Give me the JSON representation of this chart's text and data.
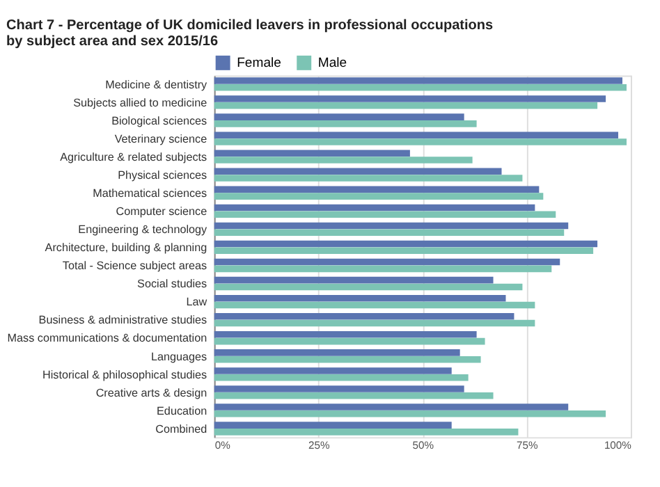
{
  "chart_data": {
    "type": "bar",
    "orientation": "horizontal",
    "title": "Chart 7 - Percentage of UK domiciled leavers in professional occupations by subject area and sex 2015/16",
    "categories": [
      "Medicine & dentistry",
      "Subjects allied to medicine",
      "Biological sciences",
      "Veterinary science",
      "Agriculture & related subjects",
      "Physical sciences",
      "Mathematical sciences",
      "Computer science",
      "Engineering & technology",
      "Architecture, building & planning",
      "Total - Science subject areas",
      "Social studies",
      "Law",
      "Business & administrative studies",
      "Mass communications & documentation",
      "Languages",
      "Historical & philosophical studies",
      "Creative arts & design",
      "Education",
      "Combined"
    ],
    "series": [
      {
        "name": "Female",
        "color": "#5a74b0",
        "values": [
          98,
          94,
          60,
          97,
          47,
          69,
          78,
          77,
          85,
          92,
          83,
          67,
          70,
          72,
          63,
          59,
          57,
          60,
          85,
          57
        ]
      },
      {
        "name": "Male",
        "color": "#7cc4b4",
        "values": [
          99,
          92,
          63,
          99,
          62,
          74,
          79,
          82,
          84,
          91,
          81,
          74,
          77,
          77,
          65,
          64,
          61,
          67,
          94,
          73
        ]
      }
    ],
    "xlim": [
      0,
      100
    ],
    "xticks": [
      {
        "value": 0,
        "label": "0%"
      },
      {
        "value": 25,
        "label": "25%"
      },
      {
        "value": 50,
        "label": "50%"
      },
      {
        "value": 75,
        "label": "75%"
      },
      {
        "value": 100,
        "label": "100%"
      }
    ],
    "grid": "x",
    "legend": "top left"
  }
}
